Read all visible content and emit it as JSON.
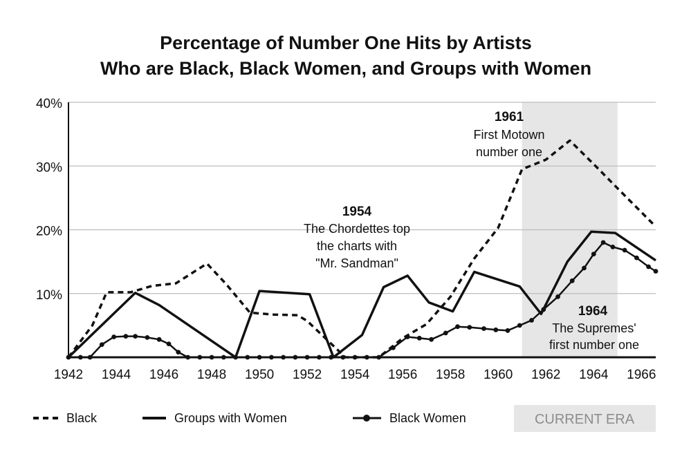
{
  "chart_data": {
    "type": "line",
    "title_lines": [
      "Percentage of Number One Hits by Artists",
      "Who are Black, Black Women, and Groups with Women"
    ],
    "xlabel": "",
    "ylabel": "",
    "xlim": [
      1942,
      1966.6
    ],
    "ylim": [
      0,
      40
    ],
    "y_ticks": [
      {
        "value": 10,
        "label": "10%"
      },
      {
        "value": 20,
        "label": "20%"
      },
      {
        "value": 30,
        "label": "30%"
      },
      {
        "value": 40,
        "label": "40%"
      }
    ],
    "x_ticks": [
      {
        "value": 1942,
        "label": "1942"
      },
      {
        "value": 1944,
        "label": "1944"
      },
      {
        "value": 1946,
        "label": "1946"
      },
      {
        "value": 1948,
        "label": "1948"
      },
      {
        "value": 1950,
        "label": "1950"
      },
      {
        "value": 1952,
        "label": "1952"
      },
      {
        "value": 1954,
        "label": "1954"
      },
      {
        "value": 1956,
        "label": "1956"
      },
      {
        "value": 1958,
        "label": "1958"
      },
      {
        "value": 1960,
        "label": "1960"
      },
      {
        "value": 1962,
        "label": "1962"
      },
      {
        "value": 1964,
        "label": "1964"
      },
      {
        "value": 1966,
        "label": "1966"
      }
    ],
    "grid": true,
    "current_era": {
      "start": 1961,
      "end": 1965,
      "label": "CURRENT ERA"
    },
    "series": [
      {
        "name": "Black",
        "style": "dashed",
        "points": [
          [
            1942,
            0
          ],
          [
            1942.5,
            2.5
          ],
          [
            1943,
            5
          ],
          [
            1943.6,
            10.2
          ],
          [
            1944.6,
            10.2
          ],
          [
            1945.5,
            11.2
          ],
          [
            1946.5,
            11.6
          ],
          [
            1947.8,
            14.7
          ],
          [
            1948.6,
            11.5
          ],
          [
            1949.6,
            7
          ],
          [
            1950.6,
            6.7
          ],
          [
            1951.6,
            6.6
          ],
          [
            1952,
            5.7
          ],
          [
            1953.6,
            0
          ],
          [
            1955,
            0
          ],
          [
            1955.5,
            1.5
          ],
          [
            1956,
            3
          ],
          [
            1957,
            5.2
          ],
          [
            1958,
            9.5
          ],
          [
            1959,
            15.5
          ],
          [
            1960,
            20.3
          ],
          [
            1961,
            29.5
          ],
          [
            1962,
            31
          ],
          [
            1963,
            34
          ],
          [
            1964,
            30.3
          ],
          [
            1965,
            26.5
          ],
          [
            1966.6,
            20.5
          ]
        ]
      },
      {
        "name": "Groups with Women",
        "style": "solid",
        "points": [
          [
            1942,
            0
          ],
          [
            1944.8,
            10.1
          ],
          [
            1945.8,
            8.2
          ],
          [
            1949,
            0
          ],
          [
            1950,
            10.4
          ],
          [
            1952.1,
            9.9
          ],
          [
            1953.1,
            0
          ],
          [
            1954.3,
            3.5
          ],
          [
            1955.2,
            11
          ],
          [
            1956.2,
            12.8
          ],
          [
            1957.1,
            8.6
          ],
          [
            1958.1,
            7.2
          ],
          [
            1959,
            13.4
          ],
          [
            1960.9,
            11.1
          ],
          [
            1961.8,
            6.8
          ],
          [
            1962.9,
            15
          ],
          [
            1963.9,
            19.7
          ],
          [
            1964.9,
            19.5
          ],
          [
            1966.6,
            15.2
          ]
        ]
      },
      {
        "name": "Black Women",
        "style": "solid-dotted",
        "points": [
          [
            1942,
            0
          ],
          [
            1942.5,
            0
          ],
          [
            1942.9,
            0
          ],
          [
            1943.4,
            2
          ],
          [
            1943.9,
            3.2
          ],
          [
            1944.4,
            3.3
          ],
          [
            1944.8,
            3.3
          ],
          [
            1945.3,
            3.1
          ],
          [
            1945.8,
            2.8
          ],
          [
            1946.2,
            2.1
          ],
          [
            1946.6,
            0.8
          ],
          [
            1947,
            0
          ],
          [
            1947.5,
            0
          ],
          [
            1948,
            0
          ],
          [
            1948.5,
            0
          ],
          [
            1949,
            0
          ],
          [
            1949.5,
            0
          ],
          [
            1950,
            0
          ],
          [
            1950.5,
            0
          ],
          [
            1951,
            0
          ],
          [
            1951.5,
            0
          ],
          [
            1952,
            0
          ],
          [
            1952.5,
            0
          ],
          [
            1953,
            0
          ],
          [
            1953.5,
            0
          ],
          [
            1954,
            0
          ],
          [
            1954.5,
            0
          ],
          [
            1955,
            0
          ],
          [
            1955.6,
            1.5
          ],
          [
            1956.2,
            3.2
          ],
          [
            1956.7,
            3
          ],
          [
            1957.2,
            2.8
          ],
          [
            1957.8,
            3.8
          ],
          [
            1958.3,
            4.8
          ],
          [
            1958.8,
            4.7
          ],
          [
            1959.4,
            4.5
          ],
          [
            1959.9,
            4.3
          ],
          [
            1960.4,
            4.2
          ],
          [
            1960.9,
            5
          ],
          [
            1961.4,
            5.8
          ],
          [
            1961.9,
            7.5
          ],
          [
            1962.5,
            9.5
          ],
          [
            1963.1,
            12
          ],
          [
            1963.6,
            14
          ],
          [
            1964,
            16.2
          ],
          [
            1964.4,
            18
          ],
          [
            1964.8,
            17.3
          ],
          [
            1965.3,
            16.8
          ],
          [
            1965.8,
            15.6
          ],
          [
            1966.3,
            14.2
          ],
          [
            1966.6,
            13.5
          ]
        ]
      }
    ],
    "annotations": [
      {
        "year_label": "1954",
        "lines": [
          "The Chordettes top",
          "the charts with",
          "\"Mr. Sandman\""
        ]
      },
      {
        "year_label": "1961",
        "lines": [
          "First Motown",
          "number one"
        ]
      },
      {
        "year_label": "1964",
        "lines": [
          "The Supremes'",
          "first number one"
        ]
      }
    ],
    "legend": {
      "placement": "bottom",
      "items": [
        "Black",
        "Groups with Women",
        "Black Women"
      ],
      "era_label": "CURRENT ERA"
    }
  }
}
